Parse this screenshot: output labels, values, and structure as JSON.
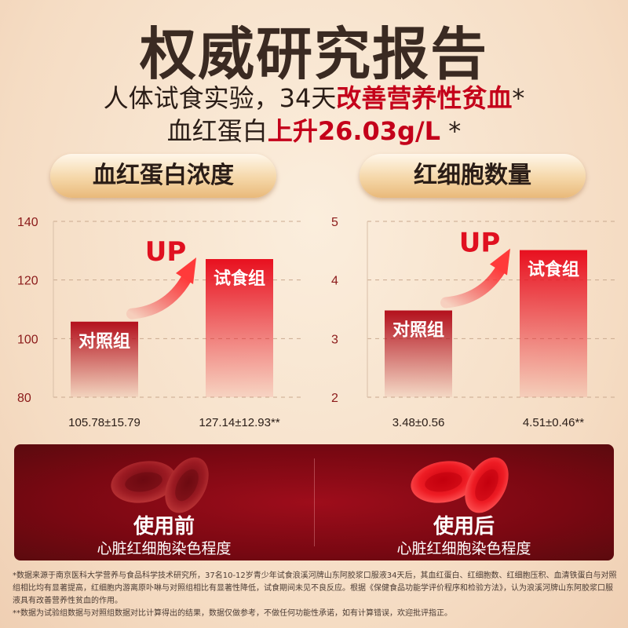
{
  "header": {
    "title": "权威研究报告",
    "line1_prefix": "人体试食实验，34天",
    "line1_highlight": "改善营养性贫血",
    "line1_suffix": "*",
    "line2_prefix": "血红蛋白",
    "line2_highlight": "上升26.03g/L",
    "line2_suffix": " *"
  },
  "pills": {
    "left": "血红蛋白浓度",
    "right": "红细胞数量"
  },
  "chart_data": [
    {
      "type": "bar",
      "title": "血红蛋白浓度",
      "categories": [
        "对照组",
        "试食组"
      ],
      "values": [
        105.78,
        127.14
      ],
      "value_labels": [
        "105.78±15.79",
        "127.14±12.93**"
      ],
      "ylim": [
        80,
        140
      ],
      "yticks": [
        80,
        100,
        120,
        140
      ],
      "annotation": "UP",
      "grid": true
    },
    {
      "type": "bar",
      "title": "红细胞数量",
      "categories": [
        "对照组",
        "试食组"
      ],
      "values": [
        3.48,
        4.51
      ],
      "value_labels": [
        "3.48±0.56",
        "4.51±0.46**"
      ],
      "ylim": [
        2,
        5
      ],
      "yticks": [
        2,
        3,
        4,
        5
      ],
      "annotation": "UP",
      "grid": true
    }
  ],
  "comparison": {
    "before_title": "使用前",
    "before_sub": "心脏红细胞染色程度",
    "after_title": "使用后",
    "after_sub": "心脏红细胞染色程度"
  },
  "footnotes": {
    "note1": "*数据来源于南京医科大学营养与食品科学技术研究所，37名10-12岁青少年试食浪溪河牌山东阿胶浆口服液34天后，其血红蛋白、红细胞数、红细胞压积、血清铁蛋白与对照组相比均有显著提高，红细胞内游离原卟啉与对照组相比有显著性降低，试食期间未见不良反应。根据《保健食品功能学评价程序和检验方法》，认为浪溪河牌山东阿胶浆口服液具有改善营养性贫血的作用。",
    "note2": "**数据为试验组数据与对照组数据对比计算得出的结果，数据仅做参考，不做任何功能性承诺，如有计算错误，欢迎批评指正。"
  },
  "colors": {
    "accent_red": "#c4001a",
    "dark_red": "#7a0812",
    "title_brown": "#3a2a22"
  }
}
